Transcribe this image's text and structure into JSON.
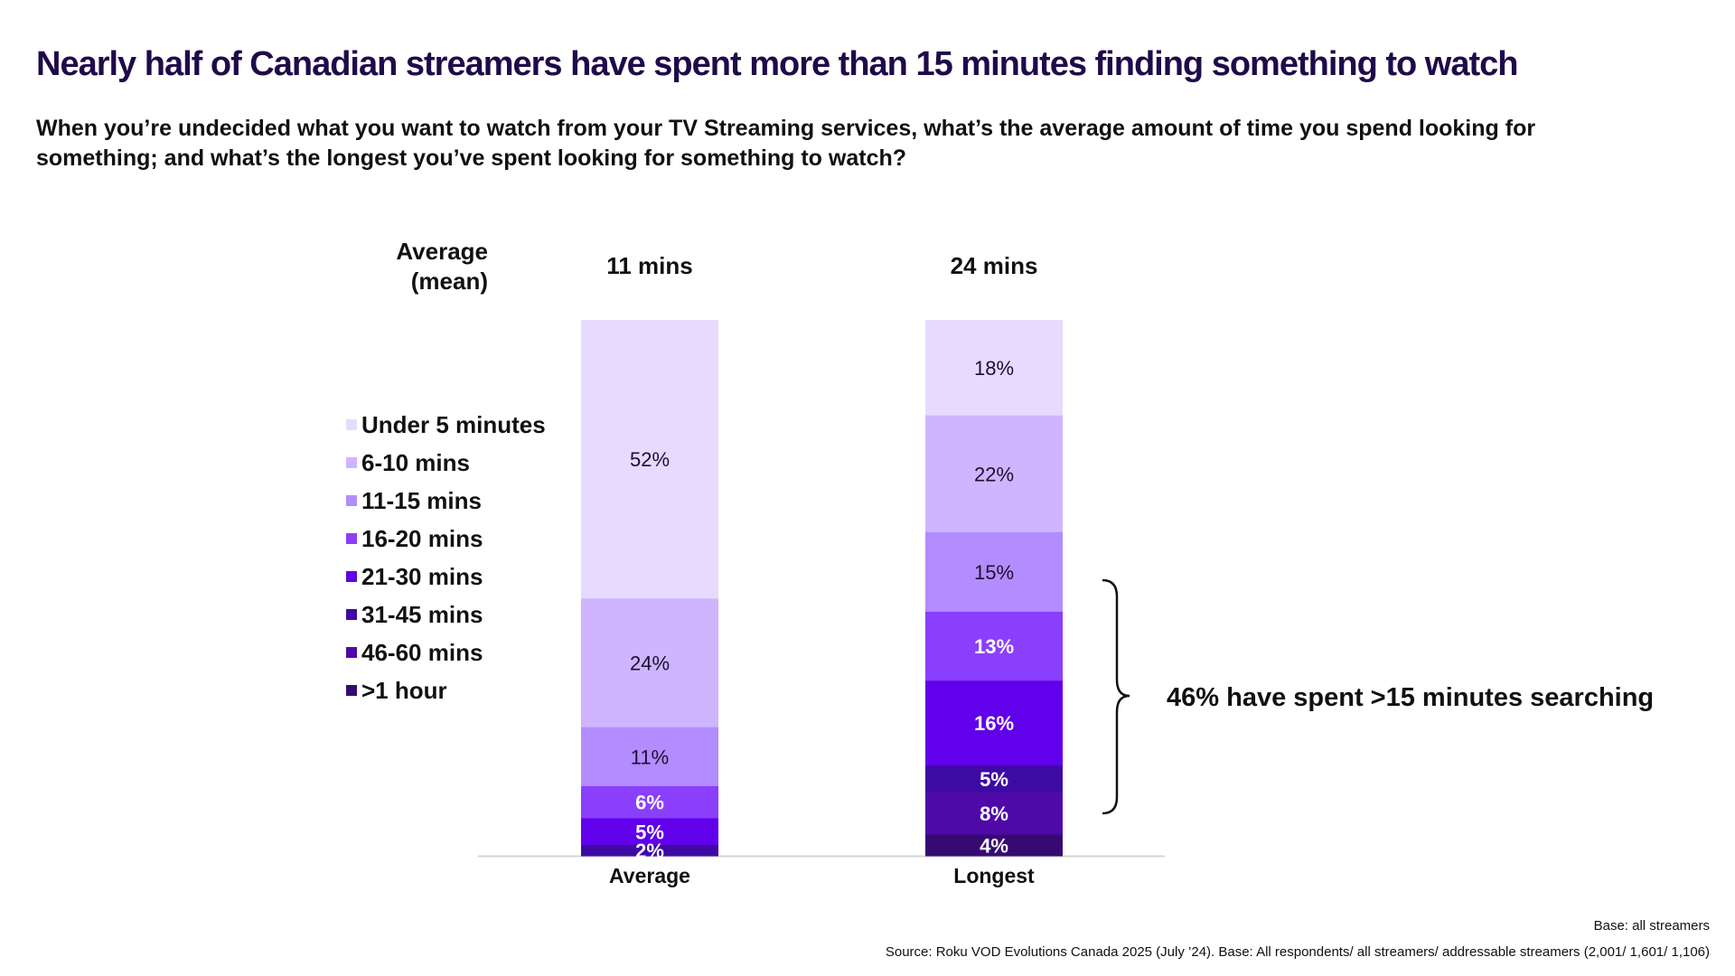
{
  "title": "Nearly half of Canadian streamers have spent more than 15 minutes finding something to watch",
  "subtitle": "When you’re undecided what you want to watch from your TV Streaming services, what’s the average amount of time you spend looking for something; and what’s the longest you’ve spent looking for something to watch?",
  "mean_label_line1": "Average",
  "mean_label_line2": "(mean)",
  "chart_data": {
    "type": "bar",
    "stacked": true,
    "categories": [
      "Average",
      "Longest"
    ],
    "means": [
      "11 mins",
      "24 mins"
    ],
    "series": [
      {
        "name": "Under 5 minutes",
        "color": "#e6dbff",
        "values": [
          52,
          18
        ]
      },
      {
        "name": "6-10 mins",
        "color": "#cfb5ff",
        "values": [
          24,
          22
        ]
      },
      {
        "name": "11-15 mins",
        "color": "#b38cff",
        "values": [
          11,
          15
        ]
      },
      {
        "name": "16-20 mins",
        "color": "#8a3ffc",
        "values": [
          6,
          13
        ]
      },
      {
        "name": "21-30 mins",
        "color": "#6100eb",
        "values": [
          5,
          16
        ]
      },
      {
        "name": "31-45 mins",
        "color": "#3d0ba3",
        "values": [
          2,
          5
        ]
      },
      {
        "name": "46-60 mins",
        "color": "#4d0aa8",
        "values": [
          0,
          8
        ]
      },
      {
        "name": ">1 hour",
        "color": "#370a72",
        "values": [
          0,
          4
        ]
      }
    ],
    "legend_position": "left",
    "annotation": "46% have spent >15 minutes searching",
    "grid": false
  },
  "footer": {
    "base": "Base: all streamers",
    "source": "Source: Roku VOD Evolutions Canada 2025 (July ’24). Base: All respondents/ all streamers/ addressable streamers (2,001/ 1,601/ 1,106)"
  }
}
